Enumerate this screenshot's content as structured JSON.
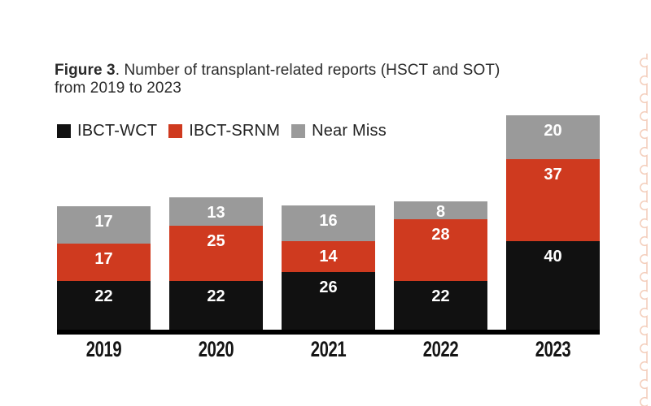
{
  "figure": {
    "title_bold": "Figure 3",
    "title_rest": ". Number of transplant-related reports (HSCT and SOT)",
    "title_line2": "from 2019 to 2023"
  },
  "chart_data": {
    "type": "bar",
    "stacked": true,
    "title": "Figure 3. Number of transplant-related reports (HSCT and SOT) from 2019 to 2023",
    "categories": [
      "2019",
      "2020",
      "2021",
      "2022",
      "2023"
    ],
    "series": [
      {
        "name": "IBCT-WCT",
        "color": "#111111",
        "values": [
          22,
          22,
          26,
          22,
          40
        ]
      },
      {
        "name": "IBCT-SRNM",
        "color": "#cf3a1f",
        "values": [
          17,
          25,
          14,
          28,
          37
        ]
      },
      {
        "name": "Near Miss",
        "color": "#9a9a9a",
        "values": [
          17,
          13,
          16,
          8,
          20
        ]
      }
    ],
    "totals": [
      56,
      60,
      56,
      58,
      97
    ],
    "value_labels": "white, bold, inside top of each segment",
    "legend_position": "top-left",
    "grid": false,
    "xlabel": "",
    "ylabel": "",
    "axis_line_color": "#000000"
  },
  "decoration": {
    "scalloped_edge_color": "#f4cfbd"
  }
}
